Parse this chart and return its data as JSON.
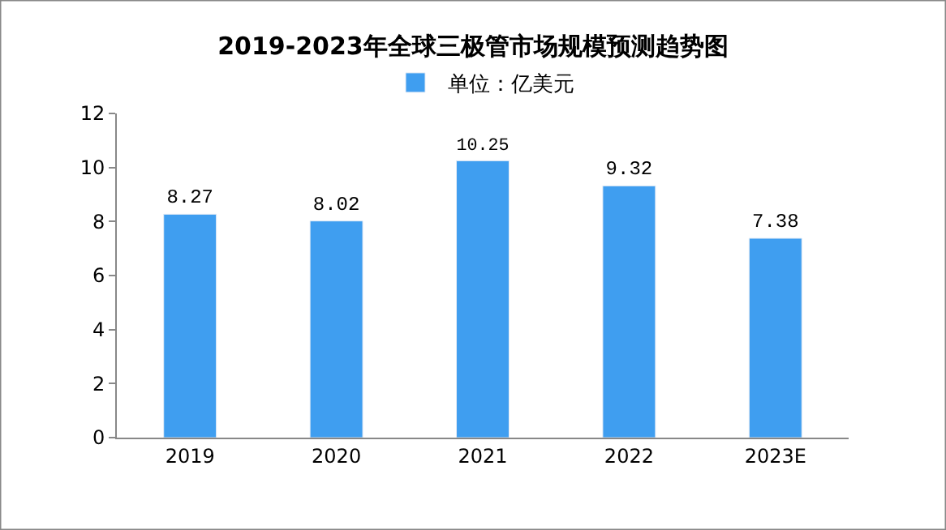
{
  "chart_data": {
    "type": "bar",
    "title": "2019-2023年全球三极管市场规模预测趋势图",
    "categories": [
      "2019",
      "2020",
      "2021",
      "2022",
      "2023E"
    ],
    "series": [
      {
        "name": "单位：亿美元",
        "color": "#3f9ef0",
        "values": [
          8.27,
          8.02,
          10.25,
          9.32,
          7.38
        ]
      }
    ],
    "ylim": [
      0,
      12
    ],
    "yticks": [
      0,
      2,
      4,
      6,
      8,
      10,
      12
    ],
    "legend": "top",
    "data_labels": true
  }
}
